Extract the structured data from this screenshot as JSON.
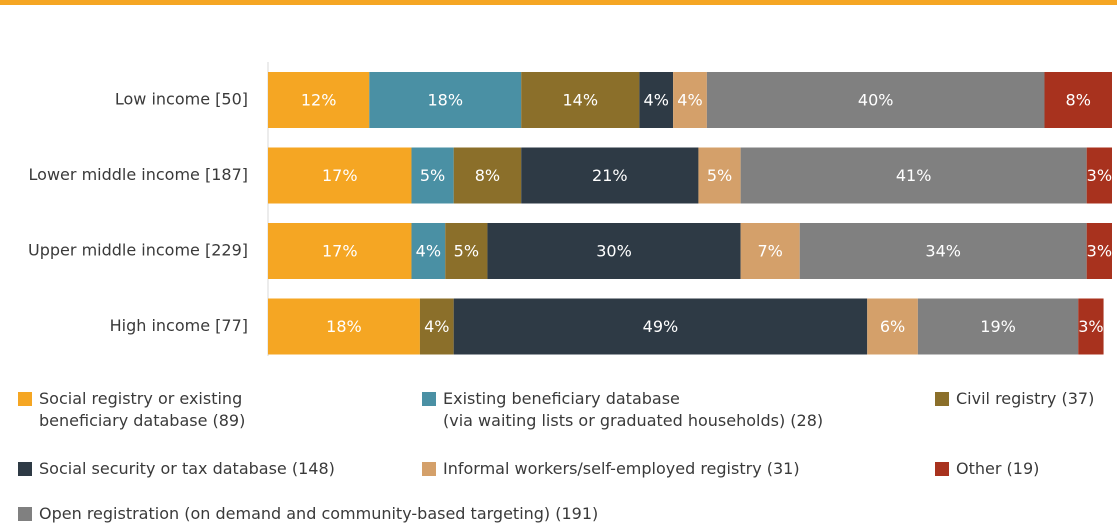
{
  "chart_data": {
    "type": "stacked-bar-horizontal",
    "categories": [
      "Low income [50]",
      "Lower middle income [187]",
      "Upper middle income [229]",
      "High income [77]"
    ],
    "xlim": [
      0,
      100
    ],
    "series": [
      {
        "name": "Social registry or existing\nbeneficiary database (89)",
        "color": "#f5a623",
        "values": [
          12,
          17,
          17,
          18
        ],
        "value_labels": [
          "12%",
          "17%",
          "17%",
          "18%"
        ]
      },
      {
        "name": "Existing beneficiary database\n(via waiting lists or graduated households) (28)",
        "color": "#4a90a4",
        "values": [
          18,
          5,
          4,
          0
        ],
        "value_labels": [
          "18%",
          "5%",
          "4%",
          null
        ]
      },
      {
        "name": "Civil registry (37)",
        "color": "#8b6f2a",
        "values": [
          14,
          8,
          5,
          4
        ],
        "value_labels": [
          "14%",
          "8%",
          "5%",
          "4%"
        ]
      },
      {
        "name": "Social security or tax database (148)",
        "color": "#2e3a45",
        "values": [
          4,
          21,
          30,
          49
        ],
        "value_labels": [
          "4%",
          "21%",
          "30%",
          "49%"
        ]
      },
      {
        "name": "Informal workers/self-employed registry (31)",
        "color": "#d4a06a",
        "values": [
          4,
          5,
          7,
          6
        ],
        "value_labels": [
          "4%",
          "5%",
          "7%",
          "6%"
        ]
      },
      {
        "name": "Open registration (on demand and community-based targeting) (191)",
        "color": "#808080",
        "values": [
          40,
          41,
          34,
          19
        ],
        "value_labels": [
          "40%",
          "41%",
          "34%",
          "19%"
        ]
      },
      {
        "name": "Other (19)",
        "color": "#a8321e",
        "values": [
          8,
          3,
          3,
          3
        ],
        "value_labels": [
          "8%",
          "3%",
          "3%",
          "3%"
        ]
      }
    ]
  }
}
